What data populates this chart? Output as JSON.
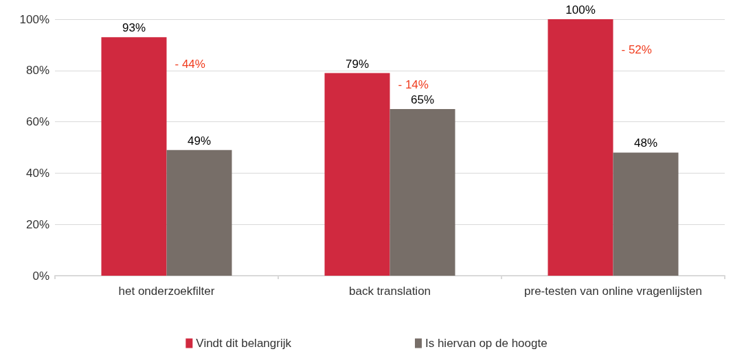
{
  "chart_data": {
    "type": "bar",
    "categories": [
      "het onderzoekfilter",
      "back translation",
      "pre-testen van online vragenlijsten"
    ],
    "series": [
      {
        "name": "Vindt dit belangrijk",
        "color": "#d0293f",
        "values": [
          93,
          79,
          100
        ]
      },
      {
        "name": "Is hiervan op de hoogte",
        "color": "#776e68",
        "values": [
          49,
          65,
          48
        ]
      }
    ],
    "ylim": [
      0,
      100
    ],
    "yticks": [
      {
        "value": 0,
        "label": "0%"
      },
      {
        "value": 20,
        "label": "20%"
      },
      {
        "value": 40,
        "label": "40%"
      },
      {
        "value": 60,
        "label": "60%"
      },
      {
        "value": 80,
        "label": "80%"
      },
      {
        "value": 100,
        "label": "100%"
      }
    ],
    "value_labels": [
      [
        "93%",
        "79%",
        "100%"
      ],
      [
        "49%",
        "65%",
        "48%"
      ]
    ],
    "annotations": [
      "- 44%",
      "- 14%",
      "- 52%"
    ],
    "grid": "y",
    "legend": "bottom"
  }
}
